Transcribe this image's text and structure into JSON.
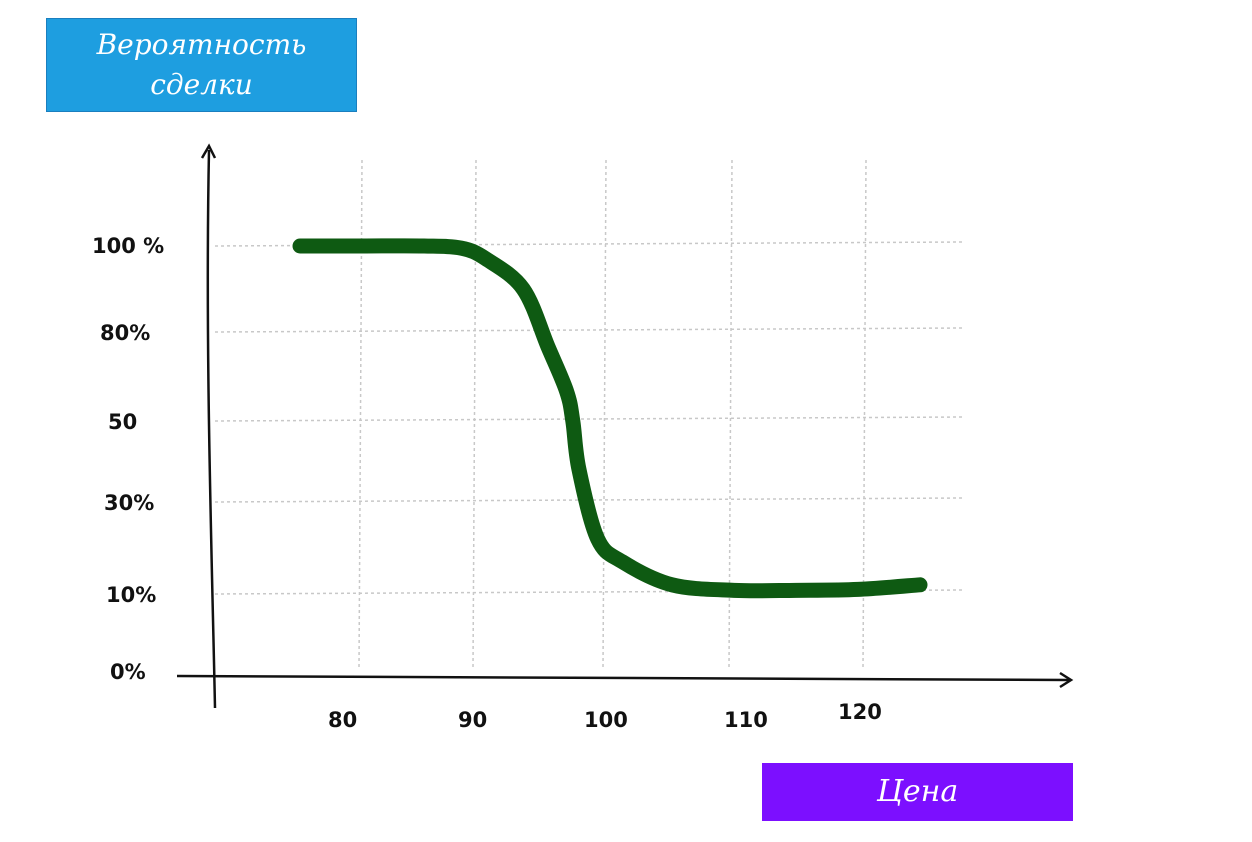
{
  "colors": {
    "y_box": "#1e9ee0",
    "x_box": "#7c0fff",
    "curve": "#0e5a12",
    "grid": "#c8c8c8",
    "axis": "#111111"
  },
  "chart_data": {
    "type": "line",
    "ylabel": "Вероятность сделки",
    "xlabel": "Цена",
    "x_ticks": [
      "80",
      "90",
      "100",
      "110",
      "120"
    ],
    "y_ticks": [
      "0%",
      "10%",
      "30%",
      "50",
      "80%",
      "100 %"
    ],
    "grid": true,
    "series": [
      {
        "x": [
          75,
          80,
          85,
          88,
          90,
          93,
          95,
          96.5,
          97,
          97.5,
          99,
          101,
          105,
          110,
          115,
          120,
          125
        ],
        "y": [
          100,
          100,
          100,
          99.5,
          97,
          90,
          75,
          60,
          50,
          38,
          22,
          17,
          12,
          10.8,
          10.8,
          11,
          12
        ]
      }
    ]
  }
}
